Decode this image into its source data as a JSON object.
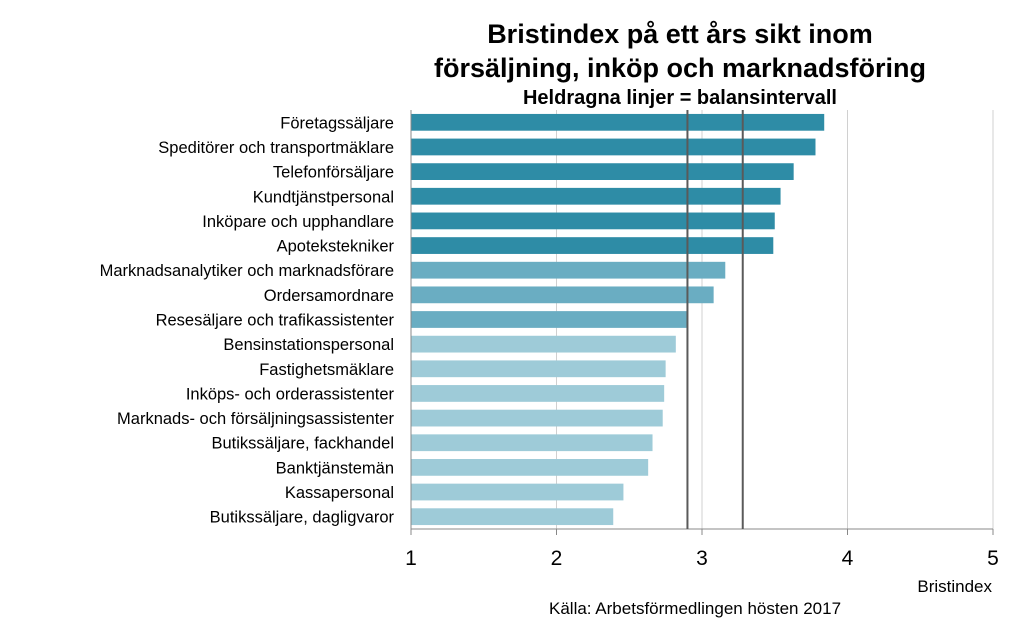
{
  "chart_data": {
    "type": "bar",
    "orientation": "horizontal",
    "title_line1": "Bristindex på ett års sikt inom",
    "title_line2": "försäljning, inköp och marknadsföring",
    "subtitle": "Heldragna linjer = balansintervall",
    "xlabel": "Bristindex",
    "source": "Källa: Arbetsförmedlingen hösten 2017",
    "xlim": [
      1,
      5
    ],
    "xticks": [
      "1",
      "2",
      "3",
      "4",
      "5"
    ],
    "grid": "vertical",
    "balance_interval": [
      2.9,
      3.28
    ],
    "categories": [
      "Företagssäljare",
      "Speditörer och transportmäklare",
      "Telefonförsäljare",
      "Kundtjänstpersonal",
      "Inköpare och upphandlare",
      "Apotekstekniker",
      "Marknadsanalytiker och marknadsförare",
      "Ordersamordnare",
      "Resesäljare och trafikassistenter",
      "Bensinstationspersonal",
      "Fastighetsmäklare",
      "Inköps- och orderassistenter",
      "Marknads- och försäljningsassistenter",
      "Butikssäljare, fackhandel",
      "Banktjänstemän",
      "Kassapersonal",
      "Butikssäljare, dagligvaror"
    ],
    "values": [
      3.84,
      3.78,
      3.63,
      3.54,
      3.5,
      3.49,
      3.16,
      3.08,
      2.9,
      2.82,
      2.75,
      2.74,
      2.73,
      2.66,
      2.63,
      2.46,
      2.39
    ],
    "colors": {
      "shortage": "#2e8ca6",
      "balance": "#6aadc2",
      "surplus": "#9ecbd8",
      "balance_line": "#5a5a5a",
      "grid": "#d0d0d0"
    }
  }
}
